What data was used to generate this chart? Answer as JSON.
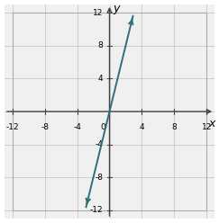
{
  "xlim": [
    -13,
    13
  ],
  "ylim": [
    -13,
    13
  ],
  "axis_xlim": [
    -12,
    12
  ],
  "axis_ylim": [
    -12,
    12
  ],
  "xticks": [
    -12,
    -8,
    -4,
    4,
    8,
    12
  ],
  "yticks": [
    -12,
    -8,
    -4,
    4,
    8,
    12
  ],
  "xtick_labels": [
    "-12",
    "-8",
    "-4",
    "4",
    "8",
    "12"
  ],
  "ytick_labels": [
    "-12",
    "-8",
    "-4",
    "4",
    "8",
    "12"
  ],
  "grid_ticks": [
    -12,
    -8,
    -4,
    0,
    4,
    8,
    12
  ],
  "slope": 4,
  "intercept": 0,
  "x_start": -2.9,
  "x_end": 2.9,
  "line_color": "#2e6e7e",
  "line_width": 1.4,
  "axis_color": "#444444",
  "grid_color": "#c8c8c8",
  "bg_color": "#f0f0f0",
  "xlabel": "x",
  "ylabel": "y",
  "tick_fontsize": 6.5,
  "label_fontsize": 9
}
